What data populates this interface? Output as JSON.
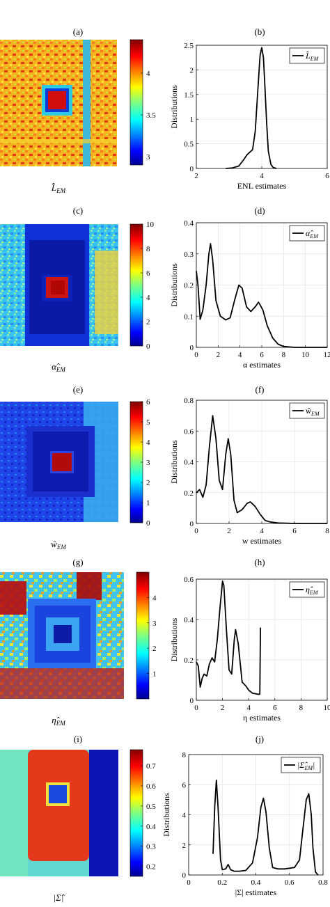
{
  "panels": [
    {
      "left": {
        "label": "(a)",
        "caption": "L̂",
        "caption_sub": "EM",
        "colorbar": {
          "min": 2.9,
          "max": 4.4,
          "ticks": [
            3,
            3.5,
            4
          ],
          "tick_labels": [
            "3",
            "3.5",
            "4"
          ]
        }
      },
      "right": {
        "label": "(b)",
        "xlabel": "ENL estimates",
        "ylabel": "Distributions",
        "legend": "L̂",
        "legend_sub": "EM"
      }
    },
    {
      "left": {
        "label": "(c)",
        "caption": "α̂",
        "caption_sub": "EM",
        "colorbar": {
          "min": 0,
          "max": 10,
          "ticks": [
            0,
            2,
            4,
            6,
            8,
            10
          ],
          "tick_labels": [
            "0",
            "2",
            "4",
            "6",
            "8",
            "10"
          ]
        }
      },
      "right": {
        "label": "(d)",
        "xlabel": "α estimates",
        "ylabel": "Distributions",
        "legend": "α̂",
        "legend_sub": "EM"
      }
    },
    {
      "left": {
        "label": "(e)",
        "caption": "ŵ",
        "caption_sub": "EM",
        "colorbar": {
          "min": 0,
          "max": 6,
          "ticks": [
            0,
            1,
            2,
            3,
            4,
            5,
            6
          ],
          "tick_labels": [
            "0",
            "1",
            "2",
            "3",
            "4",
            "5",
            "6"
          ]
        }
      },
      "right": {
        "label": "(f)",
        "xlabel": "w estimates",
        "ylabel": "Distributions",
        "legend": "ŵ",
        "legend_sub": "EM"
      }
    },
    {
      "left": {
        "label": "(g)",
        "caption": "η̂",
        "caption_sub": "EM",
        "colorbar": {
          "min": 0,
          "max": 5,
          "ticks": [
            1,
            2,
            3,
            4
          ],
          "tick_labels": [
            "1",
            "2",
            "3",
            "4"
          ]
        }
      },
      "right": {
        "label": "(h)",
        "xlabel": "η estimates",
        "ylabel": "Distributions",
        "legend": "η̂",
        "legend_sub": "EM"
      }
    },
    {
      "left": {
        "label": "(i)",
        "caption": "|Σ̂|",
        "caption_sub": "",
        "colorbar": {
          "min": 0.15,
          "max": 0.78,
          "ticks": [
            0.2,
            0.3,
            0.4,
            0.5,
            0.6,
            0.7
          ],
          "tick_labels": [
            "0.2",
            "0.3",
            "0.4",
            "0.5",
            "0.6",
            "0.7"
          ]
        }
      },
      "right": {
        "label": "(j)",
        "xlabel": "|Σ| estimates",
        "ylabel": "Distributions",
        "legend": "|Σ̂",
        "legend_sub": "EM",
        "legend_tail": "|"
      }
    }
  ],
  "chart_data": [
    {
      "type": "line",
      "xlabel": "ENL estimates",
      "ylabel": "Distributions",
      "legend": "L̂_EM",
      "xlim": [
        2,
        6
      ],
      "ylim": [
        0,
        2.5
      ],
      "xticks": [
        2,
        4,
        6
      ],
      "yticks": [
        0,
        0.5,
        1,
        1.5,
        2,
        2.5
      ],
      "grid": true,
      "legend_position": "top-right",
      "series": [
        {
          "x": [
            2.9,
            3.1,
            3.3,
            3.45,
            3.55,
            3.65,
            3.72,
            3.8,
            3.88,
            3.95,
            4.0,
            4.05,
            4.1,
            4.15,
            4.2,
            4.28,
            4.35,
            4.45
          ],
          "y": [
            0.0,
            0.01,
            0.05,
            0.18,
            0.28,
            0.34,
            0.38,
            0.75,
            1.6,
            2.3,
            2.45,
            2.25,
            1.6,
            0.9,
            0.35,
            0.08,
            0.02,
            0.0
          ]
        }
      ]
    },
    {
      "type": "line",
      "xlabel": "α estimates",
      "ylabel": "Distributions",
      "legend": "α̂_EM",
      "xlim": [
        0,
        12
      ],
      "ylim": [
        0,
        0.4
      ],
      "xticks": [
        0,
        2,
        4,
        6,
        8,
        10,
        12
      ],
      "yticks": [
        0,
        0.1,
        0.2,
        0.3,
        0.4
      ],
      "grid": true,
      "legend_position": "top-right",
      "series": [
        {
          "x": [
            0.0,
            0.15,
            0.35,
            0.6,
            0.9,
            1.15,
            1.3,
            1.5,
            1.8,
            2.2,
            2.7,
            3.1,
            3.5,
            3.9,
            4.2,
            4.6,
            5.0,
            5.4,
            5.7,
            6.1,
            6.5,
            7.0,
            7.5,
            8.0,
            9.0,
            10.0,
            12.0
          ],
          "y": [
            0.245,
            0.2,
            0.09,
            0.12,
            0.2,
            0.3,
            0.333,
            0.28,
            0.15,
            0.1,
            0.088,
            0.095,
            0.15,
            0.2,
            0.19,
            0.13,
            0.115,
            0.13,
            0.145,
            0.12,
            0.07,
            0.03,
            0.01,
            0.003,
            0.0,
            0.0,
            0.0
          ]
        }
      ]
    },
    {
      "type": "line",
      "xlabel": "w estimates",
      "ylabel": "Distributions",
      "legend": "ŵ_EM",
      "xlim": [
        0,
        8
      ],
      "ylim": [
        0,
        0.8
      ],
      "xticks": [
        0,
        2,
        4,
        6,
        8
      ],
      "yticks": [
        0,
        0.2,
        0.4,
        0.6,
        0.8
      ],
      "grid": true,
      "legend_position": "top-right",
      "series": [
        {
          "x": [
            0.0,
            0.2,
            0.4,
            0.6,
            0.8,
            1.0,
            1.2,
            1.4,
            1.6,
            1.8,
            1.95,
            2.1,
            2.3,
            2.5,
            2.8,
            3.1,
            3.3,
            3.6,
            3.9,
            4.2,
            4.5,
            5.0,
            6.0,
            8.0
          ],
          "y": [
            0.2,
            0.22,
            0.17,
            0.25,
            0.5,
            0.7,
            0.55,
            0.28,
            0.22,
            0.45,
            0.55,
            0.45,
            0.15,
            0.07,
            0.09,
            0.13,
            0.14,
            0.11,
            0.06,
            0.02,
            0.01,
            0.003,
            0.0,
            0.0
          ]
        }
      ]
    },
    {
      "type": "line",
      "xlabel": "η estimates",
      "ylabel": "Distributions",
      "legend": "η̂_EM",
      "xlim": [
        0,
        10
      ],
      "ylim": [
        0,
        0.6
      ],
      "xticks": [
        0,
        2,
        4,
        6,
        8,
        10
      ],
      "yticks": [
        0,
        0.2,
        0.4,
        0.6
      ],
      "grid": true,
      "legend_position": "top-right",
      "series": [
        {
          "x": [
            0.0,
            0.15,
            0.3,
            0.45,
            0.6,
            0.8,
            1.0,
            1.2,
            1.4,
            1.6,
            1.8,
            2.0,
            2.1,
            2.3,
            2.5,
            2.7,
            2.9,
            3.0,
            3.2,
            3.5,
            3.8,
            4.0,
            4.3,
            4.7,
            4.85,
            4.9
          ],
          "y": [
            0.19,
            0.17,
            0.065,
            0.11,
            0.13,
            0.12,
            0.18,
            0.21,
            0.19,
            0.3,
            0.45,
            0.59,
            0.57,
            0.35,
            0.15,
            0.13,
            0.3,
            0.35,
            0.28,
            0.09,
            0.07,
            0.05,
            0.035,
            0.03,
            0.03,
            0.36
          ]
        }
      ]
    },
    {
      "type": "line",
      "xlabel": "|Σ| estimates",
      "ylabel": "Distributions",
      "legend": "|Σ̂_EM|",
      "xlim": [
        0,
        0.8
      ],
      "ylim": [
        0,
        8
      ],
      "xticks": [
        0,
        0.2,
        0.4,
        0.6,
        0.8
      ],
      "yticks": [
        0,
        2,
        4,
        6,
        8
      ],
      "grid": true,
      "legend_position": "top-right",
      "series": [
        {
          "x": [
            0.145,
            0.155,
            0.165,
            0.175,
            0.19,
            0.2,
            0.22,
            0.235,
            0.25,
            0.27,
            0.3,
            0.34,
            0.38,
            0.41,
            0.43,
            0.445,
            0.46,
            0.48,
            0.5,
            0.53,
            0.57,
            0.6,
            0.63,
            0.66,
            0.68,
            0.7,
            0.715,
            0.73,
            0.74,
            0.755,
            0.77
          ],
          "y": [
            1.4,
            4.5,
            6.3,
            4.5,
            1.0,
            0.35,
            0.4,
            0.7,
            0.35,
            0.25,
            0.25,
            0.3,
            0.8,
            2.5,
            4.5,
            5.1,
            4.2,
            1.8,
            0.5,
            0.4,
            0.4,
            0.45,
            0.5,
            1.0,
            3.0,
            5.0,
            5.4,
            4.0,
            1.8,
            0.2,
            0.0
          ]
        }
      ]
    }
  ]
}
